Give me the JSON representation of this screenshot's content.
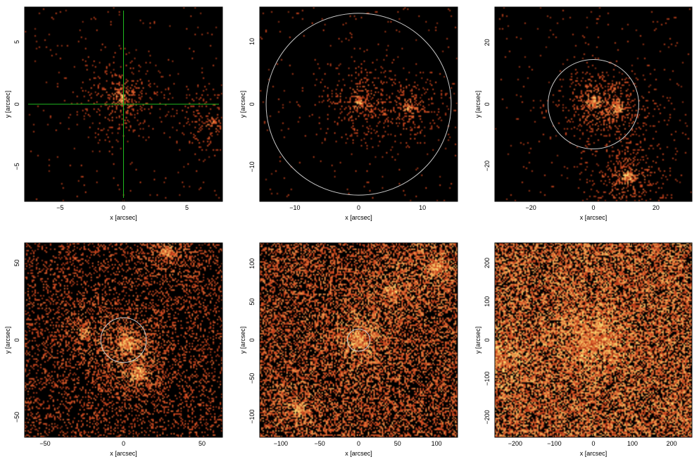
{
  "figure": {
    "layout": "2x3 grid of X-ray count images"
  },
  "colors": {
    "background": "#000000",
    "circle": "#c8c8c8",
    "crosshair": "#1fb81f",
    "frame": "#000000",
    "colormap_low": "#000000",
    "colormap_mid": "#d2461e",
    "colormap_high": "#ffe678"
  },
  "chart_data": [
    {
      "type": "heatmap",
      "xlabel": "x [arcsec]",
      "ylabel": "y [arcsec]",
      "xlim": [
        -7.8,
        7.8
      ],
      "ylim": [
        -7.8,
        7.8
      ],
      "xticks": [
        -5,
        0,
        5
      ],
      "yticks": [
        -5,
        0,
        5
      ],
      "xticklabels": [
        "−5",
        "0",
        "5"
      ],
      "yticklabels": [
        "−5",
        "0",
        "5"
      ],
      "crosshair": {
        "x": 0,
        "y": 0
      },
      "circle": null,
      "density": "sparse",
      "sources": [
        {
          "x": -0.2,
          "y": 0.5,
          "w": 0.7
        },
        {
          "x": 7,
          "y": -1.5,
          "w": 0.4
        }
      ]
    },
    {
      "type": "heatmap",
      "xlabel": "x [arcsec]",
      "ylabel": "y [arcsec]",
      "xlim": [
        -15.5,
        15.5
      ],
      "ylim": [
        -15.5,
        15.5
      ],
      "xticks": [
        -10,
        0,
        10
      ],
      "yticks": [
        -10,
        0,
        10
      ],
      "xticklabels": [
        "−10",
        "0",
        "10"
      ],
      "yticklabels": [
        "−10",
        "0",
        "10"
      ],
      "crosshair": null,
      "circle": {
        "x": 0,
        "y": 0,
        "r": 14.5
      },
      "density": "sparse",
      "sources": [
        {
          "x": 0,
          "y": 0.5,
          "w": 0.7
        },
        {
          "x": 8,
          "y": -0.5,
          "w": 0.6
        }
      ]
    },
    {
      "type": "heatmap",
      "xlabel": "x [arcsec]",
      "ylabel": "y [arcsec]",
      "xlim": [
        -31.5,
        31.5
      ],
      "ylim": [
        -31.5,
        31.5
      ],
      "xticks": [
        -20,
        0,
        20
      ],
      "yticks": [
        -20,
        0,
        20
      ],
      "xticklabels": [
        "−20",
        "0",
        "20"
      ],
      "yticklabels": [
        "−20",
        "0",
        "20"
      ],
      "crosshair": null,
      "circle": {
        "x": 0,
        "y": 0,
        "r": 14.5
      },
      "density": "sparse",
      "sources": [
        {
          "x": 0,
          "y": 0.5,
          "w": 0.8
        },
        {
          "x": 8,
          "y": -1,
          "w": 0.6
        },
        {
          "x": 11,
          "y": -23.5,
          "w": 0.9
        }
      ]
    },
    {
      "type": "heatmap",
      "xlabel": "x [arcsec]",
      "ylabel": "y [arcsec]",
      "xlim": [
        -63,
        63
      ],
      "ylim": [
        -63,
        63
      ],
      "xticks": [
        -50,
        0,
        50
      ],
      "yticks": [
        -50,
        0,
        50
      ],
      "xticklabels": [
        "−50",
        "0",
        "50"
      ],
      "yticklabels": [
        "−50",
        "0",
        "50"
      ],
      "crosshair": null,
      "circle": {
        "x": 0,
        "y": 0,
        "r": 14.5
      },
      "density": "medium",
      "sources": [
        {
          "x": 2,
          "y": -2,
          "w": 1
        },
        {
          "x": 10,
          "y": -22,
          "w": 0.8
        },
        {
          "x": 28,
          "y": 58,
          "w": 0.7
        },
        {
          "x": -25,
          "y": 5,
          "w": 0.5
        }
      ]
    },
    {
      "type": "heatmap",
      "xlabel": "x [arcsec]",
      "ylabel": "y [arcsec]",
      "xlim": [
        -127,
        127
      ],
      "ylim": [
        -127,
        127
      ],
      "xticks": [
        -100,
        -50,
        0,
        50,
        100
      ],
      "yticks": [
        -100,
        -50,
        0,
        50,
        100
      ],
      "xticklabels": [
        "−100",
        "−50",
        "0",
        "50",
        "100"
      ],
      "yticklabels": [
        "−100",
        "−50",
        "0",
        "50",
        "100"
      ],
      "crosshair": null,
      "circle": {
        "x": 0,
        "y": 0,
        "r": 14.5
      },
      "density": "dense",
      "sources": [
        {
          "x": 0,
          "y": 0,
          "w": 1
        },
        {
          "x": 100,
          "y": 95,
          "w": 0.7
        },
        {
          "x": -75,
          "y": -90,
          "w": 0.5
        },
        {
          "x": 42,
          "y": 65,
          "w": 0.5
        }
      ]
    },
    {
      "type": "heatmap",
      "xlabel": "x [arcsec]",
      "ylabel": "y [arcsec]",
      "xlim": [
        -252,
        252
      ],
      "ylim": [
        -252,
        252
      ],
      "xticks": [
        -200,
        -100,
        0,
        100,
        200
      ],
      "yticks": [
        -200,
        -100,
        0,
        100,
        200
      ],
      "xticklabels": [
        "−200",
        "−100",
        "0",
        "100",
        "200"
      ],
      "yticklabels": [
        "−200",
        "−100",
        "0",
        "100",
        "200"
      ],
      "crosshair": null,
      "circle": null,
      "density": "very dense",
      "sources": [
        {
          "x": 0,
          "y": 0,
          "w": 1
        },
        {
          "x": -240,
          "y": -50,
          "w": 0.6
        }
      ]
    }
  ]
}
